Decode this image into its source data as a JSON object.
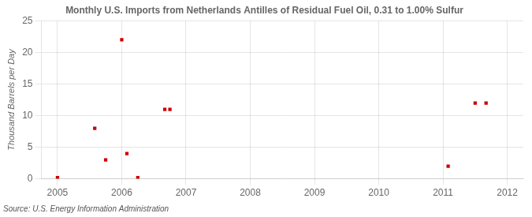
{
  "chart_data": {
    "type": "scatter",
    "title": "Monthly U.S. Imports from Netherlands Antilles of Residual Fuel Oil, 0.31 to 1.00% Sulfur",
    "ylabel": "Thousand Barrels per Day",
    "annotation": "Source: U.S. Energy Information Administration",
    "x": [
      2005.0,
      2005.58,
      2005.75,
      2006.0,
      2006.08,
      2006.25,
      2006.67,
      2006.75,
      2011.08,
      2011.5,
      2011.67
    ],
    "values": [
      0.2,
      8,
      3,
      22,
      4,
      0.2,
      11,
      11,
      2,
      12,
      12
    ],
    "color": "#cc0000",
    "marker": "square",
    "xlim": [
      2004.75,
      2012.25
    ],
    "xticks": [
      2005,
      2006,
      2007,
      2008,
      2009,
      2010,
      2011,
      2012
    ],
    "ylim": [
      0,
      25
    ],
    "yticks": [
      0,
      5,
      10,
      15,
      20,
      25
    ],
    "grid": true
  }
}
